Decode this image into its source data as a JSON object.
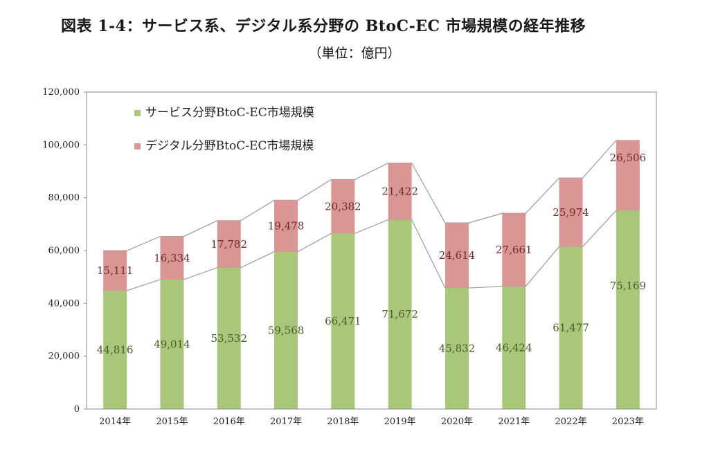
{
  "title": "図表 1-4：サービス系、デジタル系分野の BtoC-EC 市場規模の経年推移",
  "subtitle": "（単位：億円）",
  "chart_data": {
    "type": "bar",
    "stacked": true,
    "categories": [
      "2014年",
      "2015年",
      "2016年",
      "2017年",
      "2018年",
      "2019年",
      "2020年",
      "2021年",
      "2022年",
      "2023年"
    ],
    "series": [
      {
        "name": "サービス分野BtoC-EC市場規模",
        "color": "#a9c77b",
        "label_color": "#4a5a28",
        "values": [
          44816,
          49014,
          53532,
          59568,
          66471,
          71672,
          45832,
          46424,
          61477,
          75169
        ],
        "labels": [
          "44,816",
          "49,014",
          "53,532",
          "59,568",
          "66,471",
          "71,672",
          "45,832",
          "46,424",
          "61,477",
          "75,169"
        ]
      },
      {
        "name": "デジタル分野BtoC-EC市場規模",
        "color": "#d99694",
        "label_color": "#6e2a2a",
        "values": [
          15111,
          16334,
          17782,
          19478,
          20382,
          21422,
          24614,
          27661,
          25974,
          26506
        ],
        "labels": [
          "15,111",
          "16,334",
          "17,782",
          "19,478",
          "20,382",
          "21,422",
          "24,614",
          "27,661",
          "25,974",
          "26,506"
        ]
      }
    ],
    "yticks": [
      "0",
      "20,000",
      "40,000",
      "60,000",
      "80,000",
      "100,000",
      "120,000"
    ],
    "ylim": [
      0,
      120000
    ],
    "connector_lines": true,
    "legend_position": "top-left"
  }
}
